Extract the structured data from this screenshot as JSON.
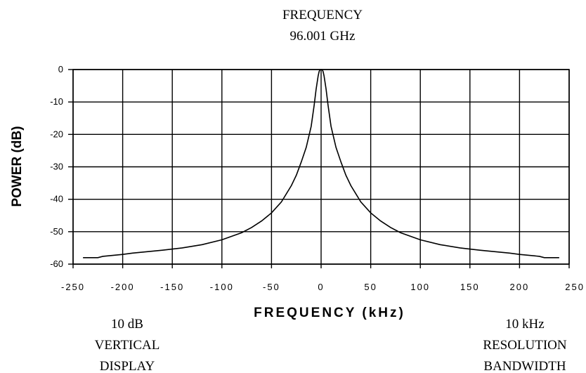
{
  "chart_data": {
    "type": "line",
    "title": [
      "FREQUENCY",
      "96.001 GHz"
    ],
    "xlabel": "FREQUENCY (kHz)",
    "ylabel": "POWER (dB)",
    "xlim": [
      -250,
      250
    ],
    "ylim": [
      -60,
      0
    ],
    "xticks": [
      -250,
      -200,
      -150,
      -100,
      -50,
      0,
      50,
      100,
      150,
      200,
      250
    ],
    "xtick_labels": [
      "-250",
      "-200",
      "-150",
      "-100",
      "-50",
      "0",
      "50",
      "100",
      "150",
      "200",
      "250"
    ],
    "yticks": [
      0,
      -10,
      -20,
      -30,
      -40,
      -50,
      -60
    ],
    "ytick_labels": [
      "0",
      "-10",
      "-20",
      "-30",
      "-40",
      "-50",
      "-60"
    ],
    "grid": true,
    "series": [
      {
        "x": [
          -240,
          -225,
          -220,
          -200,
          -190,
          -180,
          -160,
          -140,
          -120,
          -100,
          -80,
          -70,
          -60,
          -50,
          -40,
          -30,
          -25,
          -20,
          -15,
          -10,
          -7,
          -5,
          -3,
          -2,
          -1,
          0,
          1,
          2,
          3,
          5,
          7,
          10,
          15,
          20,
          25,
          30,
          40,
          50,
          60,
          70,
          80,
          100,
          120,
          140,
          160,
          180,
          190,
          200,
          220,
          225,
          240
        ],
        "y": [
          -58,
          -58,
          -57.6,
          -57,
          -56.6,
          -56.3,
          -55.7,
          -55,
          -54,
          -52.5,
          -50.3,
          -48.7,
          -46.7,
          -44.2,
          -40.8,
          -35.8,
          -32.6,
          -28.5,
          -24,
          -17.5,
          -11,
          -6,
          -2,
          -0.6,
          0,
          0,
          0,
          -0.6,
          -2,
          -6,
          -11,
          -17.5,
          -24,
          -28.5,
          -32.6,
          -35.8,
          -40.8,
          -44.2,
          -46.7,
          -48.7,
          -50.3,
          -52.5,
          -54,
          -55,
          -55.7,
          -56.3,
          -56.6,
          -57,
          -57.6,
          -58,
          -58
        ]
      }
    ]
  },
  "notes": {
    "left": [
      "10 dB",
      "VERTICAL",
      "DISPLAY"
    ],
    "right": [
      "10 kHz",
      "RESOLUTION",
      "BANDWIDTH"
    ]
  }
}
